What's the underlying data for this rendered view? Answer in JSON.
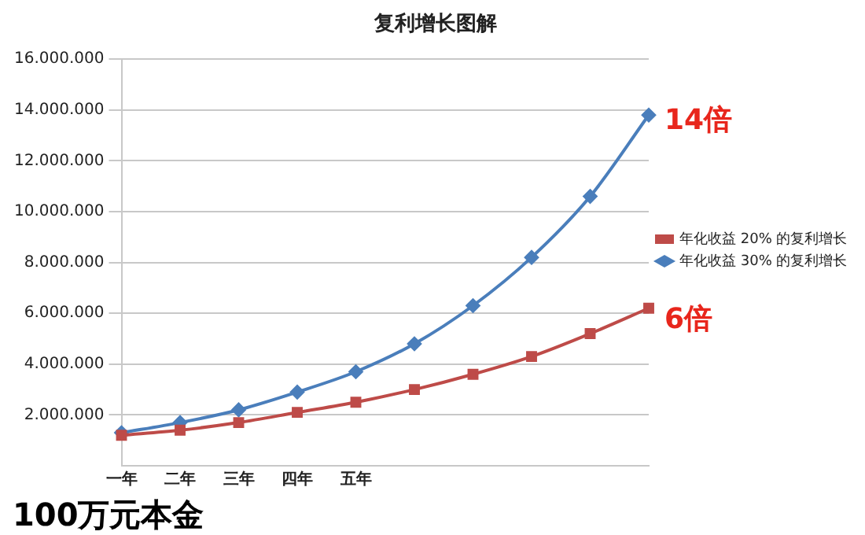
{
  "chart_data": {
    "type": "line",
    "title": "复利增长图解",
    "categories": [
      "一年",
      "二年",
      "三年",
      "四年",
      "五年",
      null,
      null,
      null,
      null,
      null
    ],
    "series": [
      {
        "name": "年化收益 30% 的复利增长",
        "color": "#4a7ebb",
        "marker": "diamond",
        "values": [
          1300000,
          1700000,
          2200000,
          2900000,
          3700000,
          4800000,
          6300000,
          8200000,
          10600000,
          13800000
        ]
      },
      {
        "name": "年化收益 20% 的复利增长",
        "color": "#be4b48",
        "marker": "square",
        "values": [
          1200000,
          1400000,
          1700000,
          2100000,
          2500000,
          3000000,
          3600000,
          4300000,
          5200000,
          6200000
        ]
      }
    ],
    "ylim": [
      0,
      16000000
    ],
    "yticks": [
      {
        "value": 2000000,
        "label": "2.000.000"
      },
      {
        "value": 4000000,
        "label": "4.000.000"
      },
      {
        "value": 6000000,
        "label": "6.000.000"
      },
      {
        "value": 8000000,
        "label": "8.000.000"
      },
      {
        "value": 10000000,
        "label": "10.000.000"
      },
      {
        "value": 12000000,
        "label": "12.000.000"
      },
      {
        "value": 14000000,
        "label": "14.000.000"
      },
      {
        "value": 16000000,
        "label": "16.000.000"
      }
    ],
    "grid": "y",
    "legend": "right",
    "line_style": "solid",
    "annotations": [
      "14倍",
      "6倍",
      "100万元本金"
    ]
  }
}
